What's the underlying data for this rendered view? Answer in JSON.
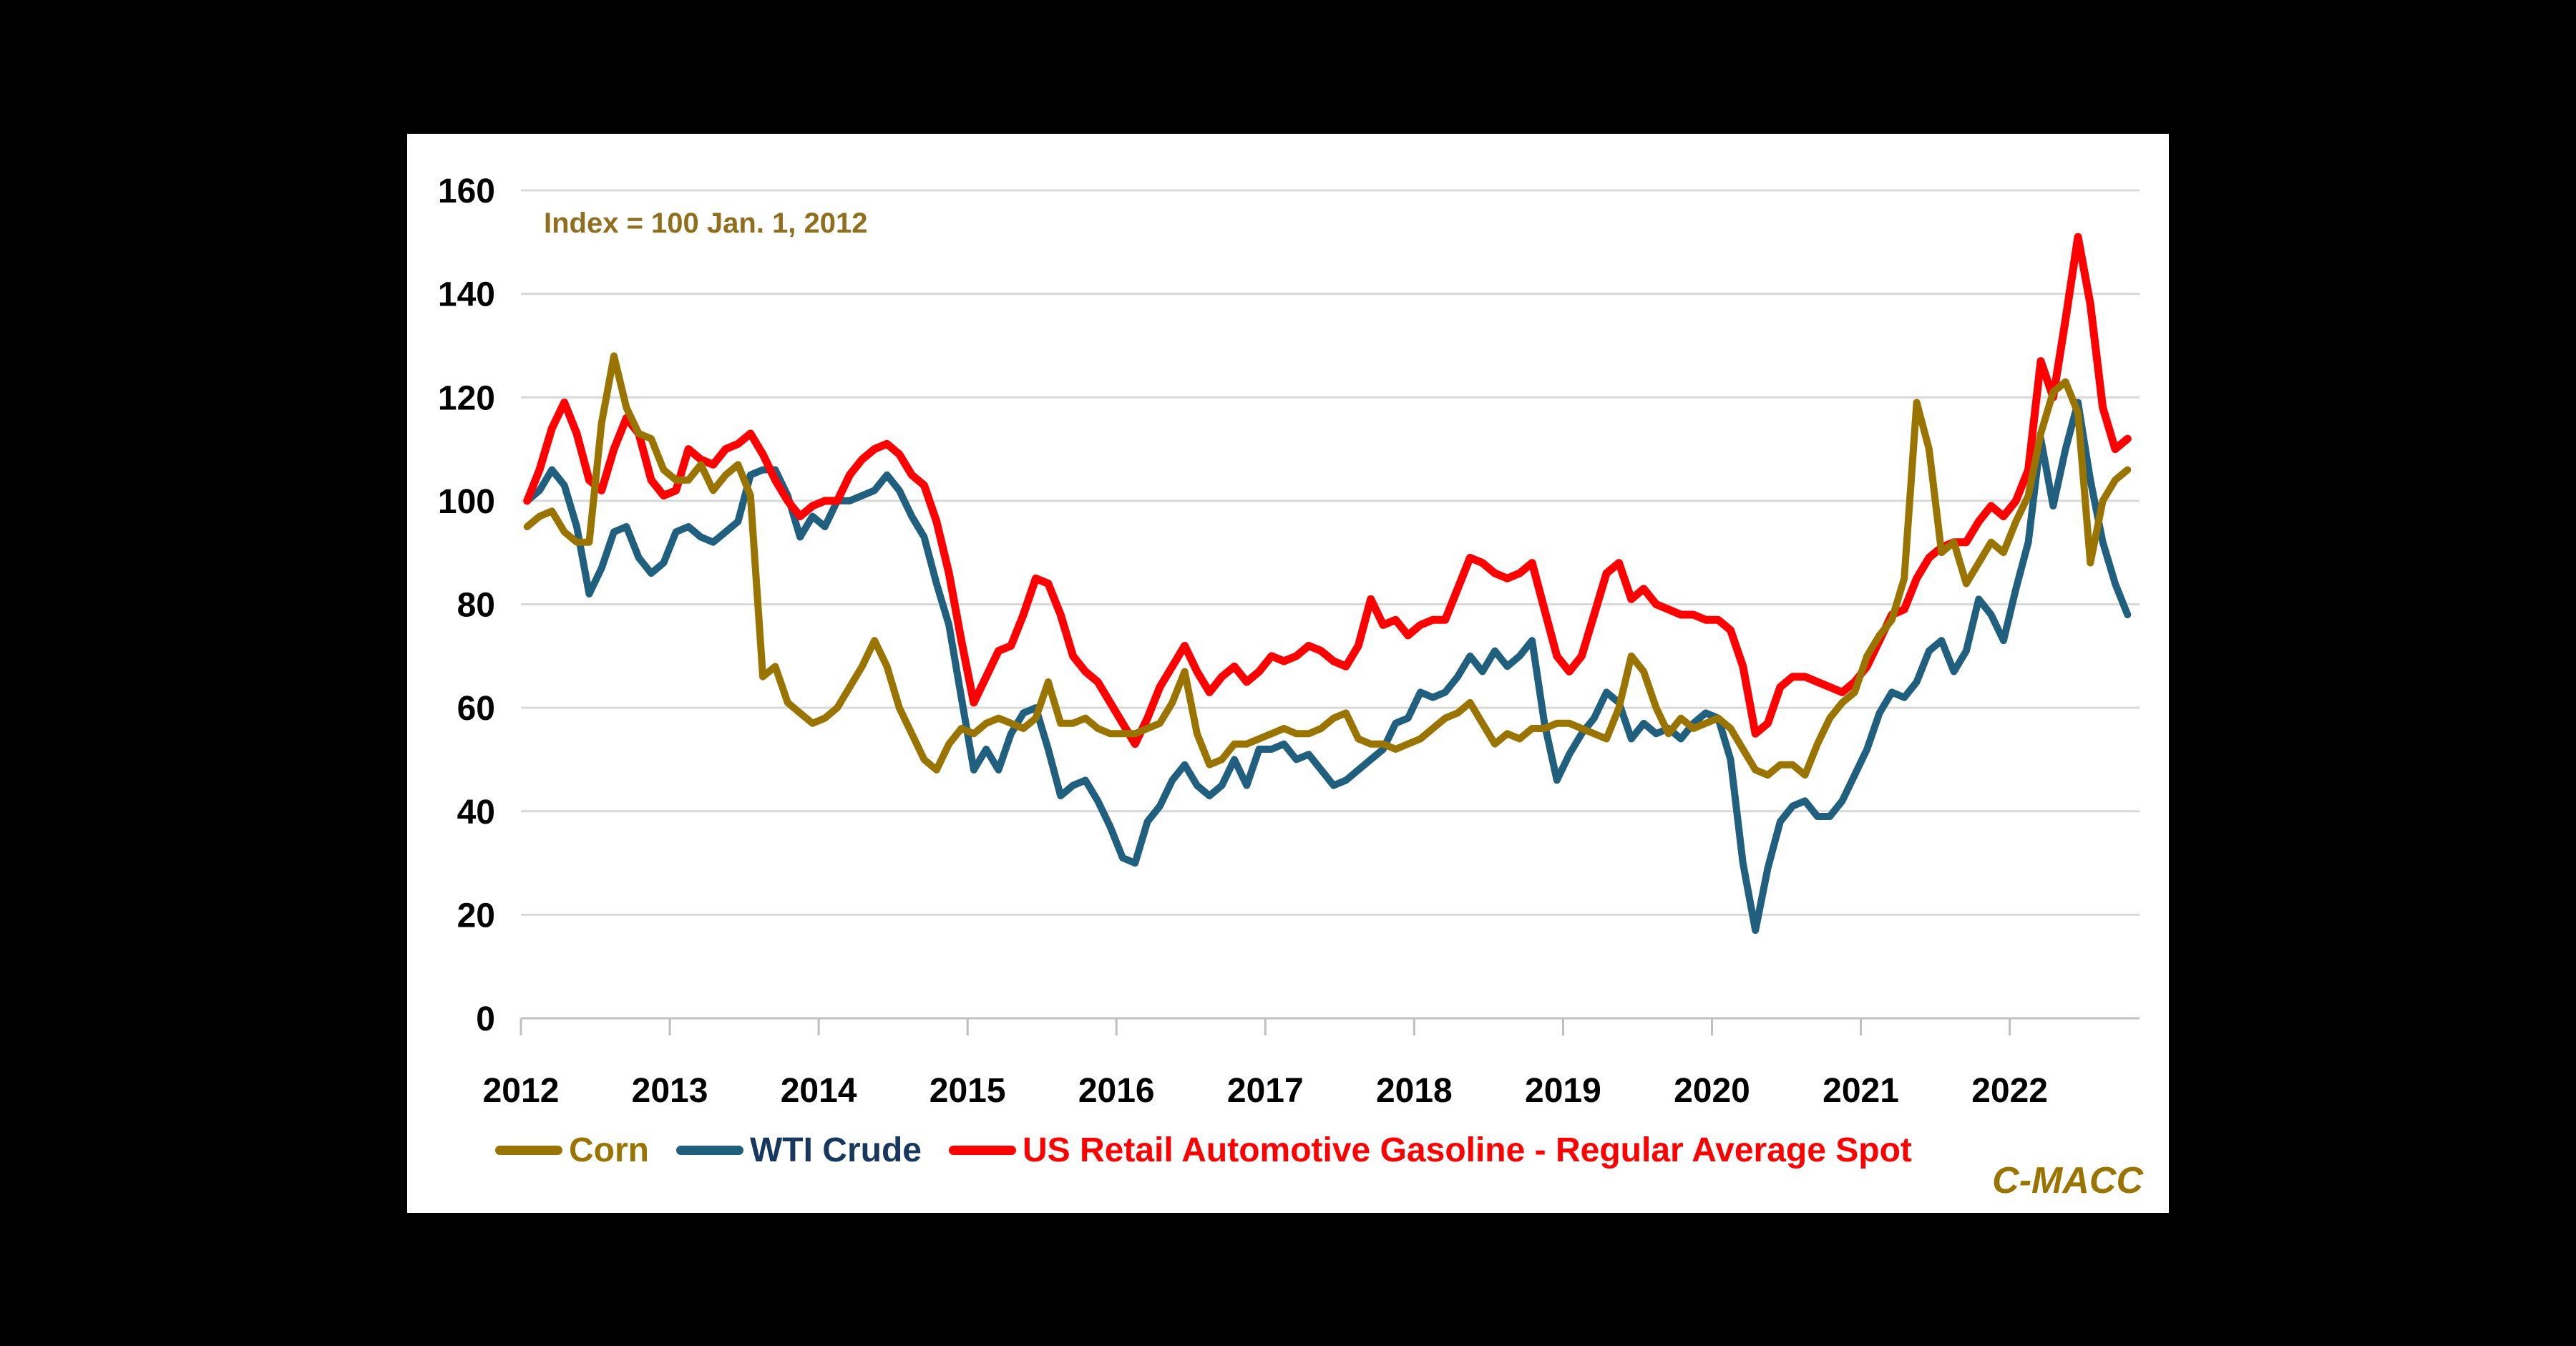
{
  "background_color": "#000000",
  "panel_color": "#FFFFFF",
  "annotation": {
    "text": "Index = 100 Jan. 1, 2012",
    "color": "#8F6E1E"
  },
  "watermark": {
    "text": "C-MACC",
    "color": "#9A7400"
  },
  "chart_data": {
    "type": "line",
    "title": "",
    "index_base": "Index = 100 Jan. 1, 2012",
    "frequency": "monthly",
    "start": {
      "year": 2012,
      "month": 1
    },
    "end": {
      "year": 2022,
      "month": 10
    },
    "x_axis": {
      "tick_labels": [
        "2012",
        "2013",
        "2014",
        "2015",
        "2016",
        "2017",
        "2018",
        "2019",
        "2020",
        "2021",
        "2022"
      ],
      "gridlines": false
    },
    "y_axis": {
      "ticks": [
        0,
        20,
        40,
        60,
        80,
        100,
        120,
        140,
        160
      ],
      "range": [
        0,
        160
      ],
      "gridlines": true,
      "gridline_color": "#D9D9D9",
      "axis_line_color": "#BFBFBF",
      "tick_text_color": "#000000"
    },
    "legend_position": "bottom",
    "series": [
      {
        "name": "Corn",
        "color": "#9A7400",
        "label_color": "#9A7400",
        "values": [
          95,
          97,
          98,
          94,
          92,
          92,
          115,
          128,
          118,
          113,
          112,
          106,
          104,
          104,
          107,
          102,
          105,
          107,
          101,
          66,
          68,
          61,
          59,
          57,
          58,
          60,
          64,
          68,
          73,
          68,
          60,
          55,
          50,
          48,
          53,
          56,
          55,
          57,
          58,
          57,
          56,
          58,
          65,
          57,
          57,
          58,
          56,
          55,
          55,
          55,
          56,
          57,
          61,
          67,
          55,
          49,
          50,
          53,
          53,
          54,
          55,
          56,
          55,
          55,
          56,
          58,
          59,
          54,
          53,
          53,
          52,
          53,
          54,
          56,
          58,
          59,
          61,
          57,
          53,
          55,
          54,
          56,
          56,
          57,
          57,
          56,
          55,
          54,
          60,
          70,
          67,
          60,
          55,
          58,
          56,
          57,
          58,
          56,
          52,
          48,
          47,
          49,
          49,
          47,
          53,
          58,
          61,
          63,
          70,
          74,
          77,
          85,
          119,
          110,
          90,
          92,
          84,
          88,
          92,
          90,
          96,
          101,
          113,
          121,
          123,
          117,
          88,
          100,
          104,
          106
        ]
      },
      {
        "name": "WTI Crude",
        "color": "#20607E",
        "label_color": "#17375E",
        "values": [
          100,
          102,
          106,
          103,
          95,
          82,
          87,
          94,
          95,
          89,
          86,
          88,
          94,
          95,
          93,
          92,
          94,
          96,
          105,
          106,
          106,
          101,
          93,
          97,
          95,
          100,
          100,
          101,
          102,
          105,
          102,
          97,
          93,
          84,
          76,
          62,
          48,
          52,
          48,
          55,
          59,
          60,
          52,
          43,
          45,
          46,
          42,
          37,
          31,
          30,
          38,
          41,
          46,
          49,
          45,
          43,
          45,
          50,
          45,
          52,
          52,
          53,
          50,
          51,
          48,
          45,
          46,
          48,
          50,
          52,
          57,
          58,
          63,
          62,
          63,
          66,
          70,
          67,
          71,
          68,
          70,
          73,
          57,
          46,
          51,
          55,
          58,
          63,
          61,
          54,
          57,
          55,
          56,
          54,
          57,
          59,
          58,
          50,
          30,
          17,
          29,
          38,
          41,
          42,
          39,
          39,
          42,
          47,
          52,
          59,
          63,
          62,
          65,
          71,
          73,
          67,
          71,
          81,
          78,
          73,
          83,
          92,
          112,
          99,
          110,
          119,
          104,
          92,
          84,
          78
        ]
      },
      {
        "name": "US Retail Automotive Gasoline - Regular Average Spot",
        "color": "#FF0000",
        "label_color": "#FF0000",
        "values": [
          100,
          106,
          114,
          119,
          113,
          104,
          102,
          110,
          116,
          113,
          104,
          101,
          102,
          110,
          108,
          107,
          110,
          111,
          113,
          109,
          104,
          100,
          97,
          99,
          100,
          100,
          105,
          108,
          110,
          111,
          109,
          105,
          103,
          96,
          86,
          73,
          61,
          66,
          71,
          72,
          78,
          85,
          84,
          78,
          70,
          67,
          65,
          61,
          57,
          53,
          58,
          64,
          68,
          72,
          67,
          63,
          66,
          68,
          65,
          67,
          70,
          69,
          70,
          72,
          71,
          69,
          68,
          72,
          81,
          76,
          77,
          74,
          76,
          77,
          77,
          83,
          89,
          88,
          86,
          85,
          86,
          88,
          79,
          70,
          67,
          70,
          78,
          86,
          88,
          81,
          83,
          80,
          79,
          78,
          78,
          77,
          77,
          75,
          68,
          55,
          57,
          64,
          66,
          66,
          65,
          64,
          63,
          65,
          68,
          73,
          78,
          79,
          85,
          89,
          91,
          92,
          92,
          96,
          99,
          97,
          100,
          106,
          127,
          120,
          135,
          151,
          138,
          118,
          110,
          112
        ]
      }
    ]
  }
}
